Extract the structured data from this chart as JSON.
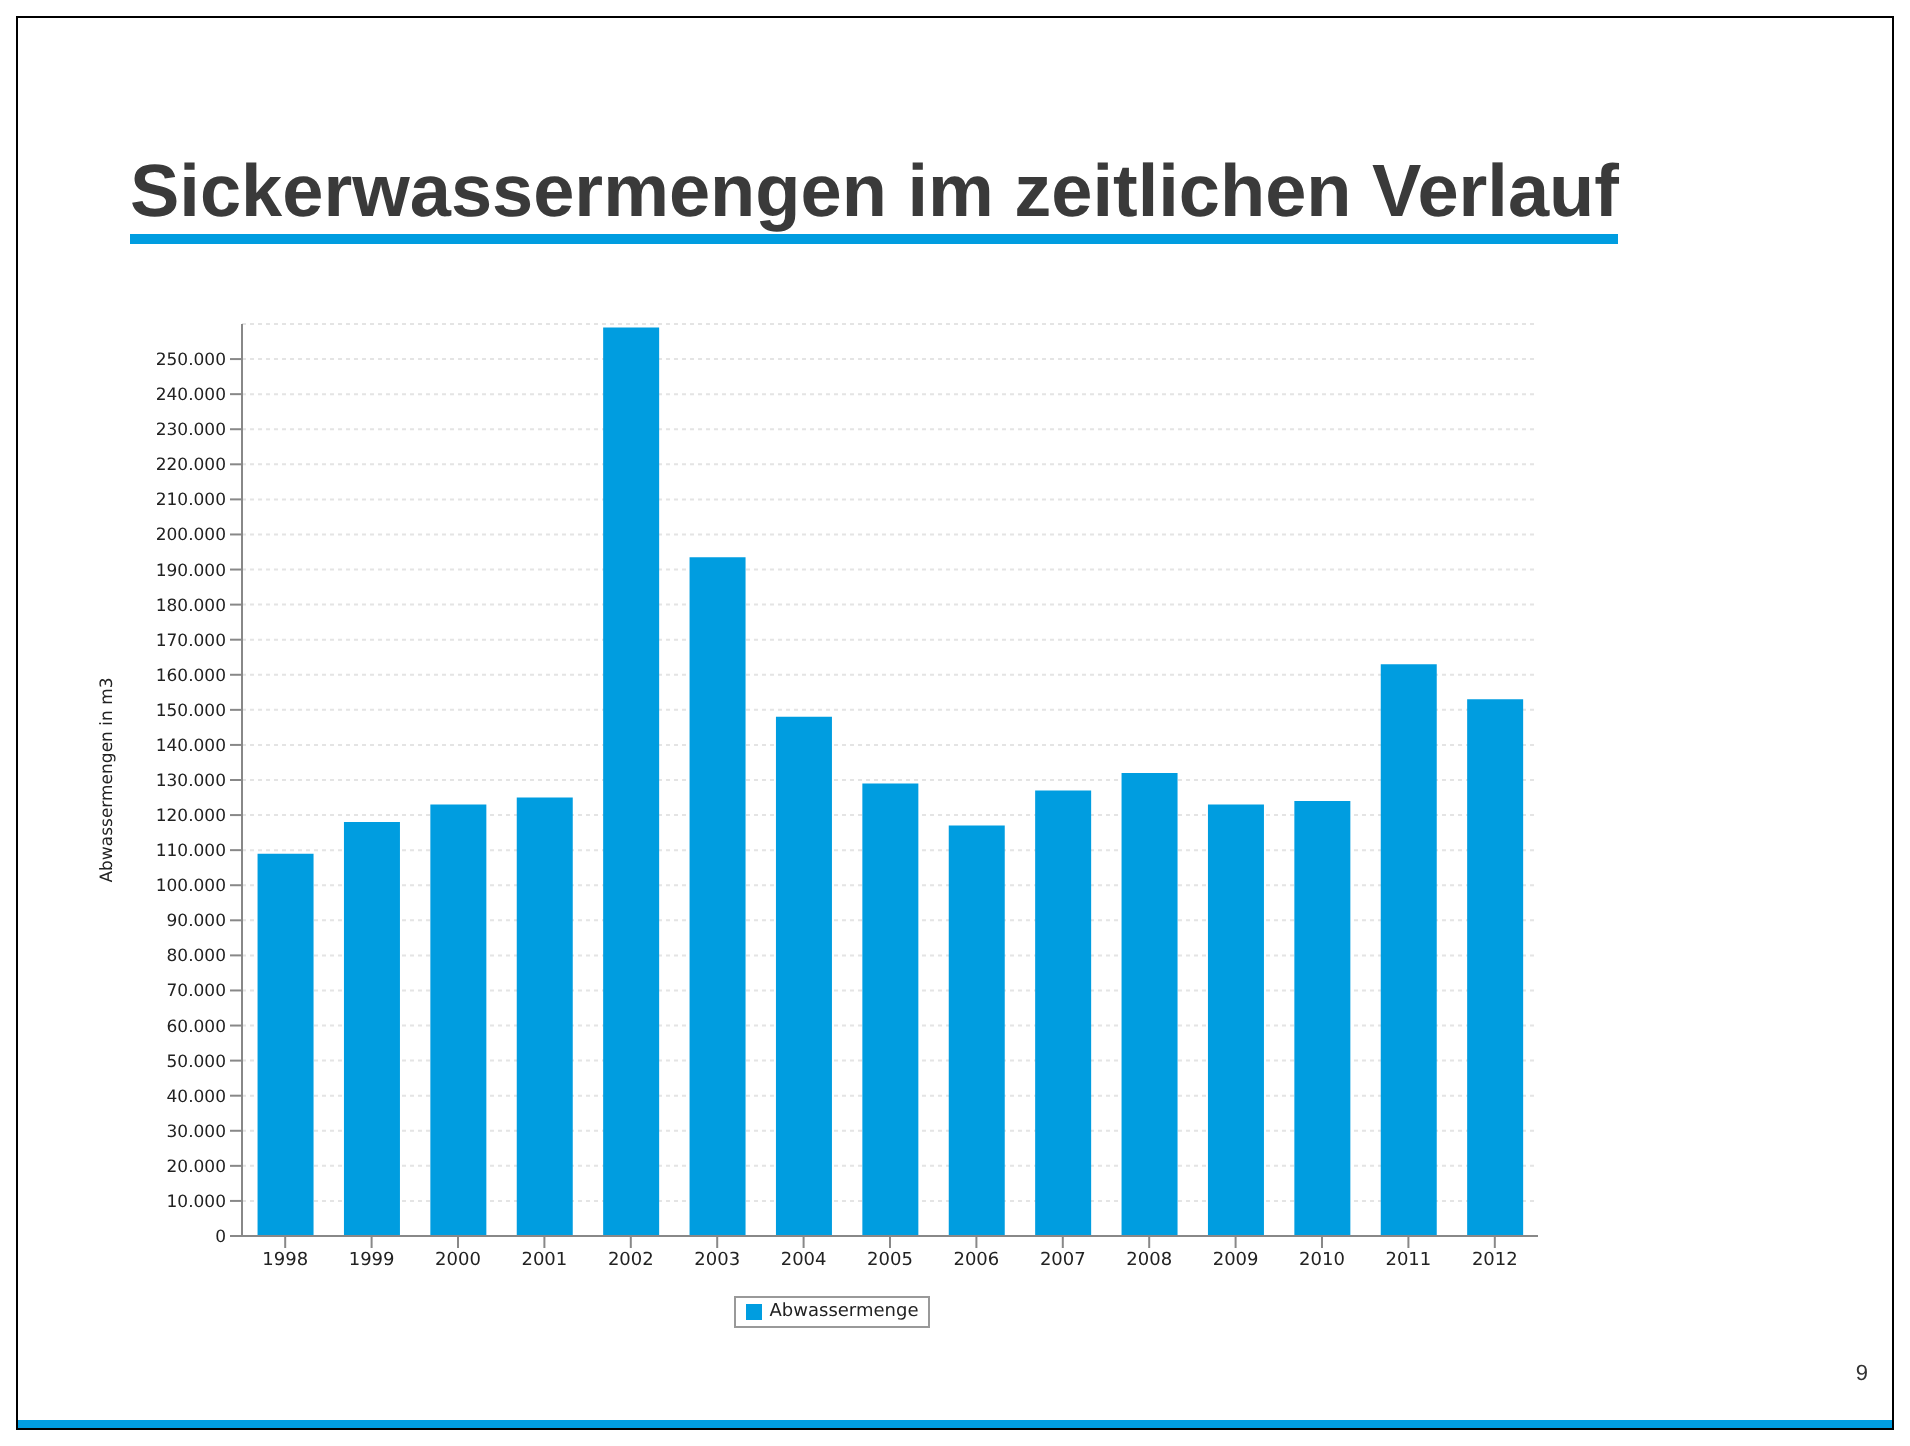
{
  "chart_data": {
    "type": "bar",
    "title": "Sickerwassermengen im zeitlichen Verlauf",
    "ylabel": "Abwassermengen in m3",
    "categories": [
      "1998",
      "1999",
      "2000",
      "2001",
      "2002",
      "2003",
      "2004",
      "2005",
      "2006",
      "2007",
      "2008",
      "2009",
      "2010",
      "2011",
      "2012"
    ],
    "series": [
      {
        "name": "Abwassermenge",
        "color": "#009de0",
        "values": [
          109000,
          118000,
          123000,
          125000,
          259000,
          193500,
          148000,
          129000,
          117000,
          127000,
          132000,
          123000,
          124000,
          163000,
          153000
        ]
      }
    ],
    "ylim": [
      0,
      260000
    ],
    "yticks": [
      0,
      {
        "value": 10000,
        "label": "10.000"
      },
      {
        "value": 20000,
        "label": "20.000"
      },
      {
        "value": 30000,
        "label": "30.000"
      },
      {
        "value": 40000,
        "label": "40.000"
      },
      {
        "value": 50000,
        "label": "50.000"
      },
      {
        "value": 60000,
        "label": "60.000"
      },
      {
        "value": 70000,
        "label": "70.000"
      },
      {
        "value": 80000,
        "label": "80.000"
      },
      {
        "value": 90000,
        "label": "90.000"
      },
      {
        "value": 100000,
        "label": "100.000"
      },
      {
        "value": 110000,
        "label": "110.000"
      },
      {
        "value": 120000,
        "label": "120.000"
      },
      {
        "value": 130000,
        "label": "130.000"
      },
      {
        "value": 140000,
        "label": "140.000"
      },
      {
        "value": 150000,
        "label": "150.000"
      },
      {
        "value": 160000,
        "label": "160.000"
      },
      {
        "value": 170000,
        "label": "170.000"
      },
      {
        "value": 180000,
        "label": "180.000"
      },
      {
        "value": 190000,
        "label": "190.000"
      },
      {
        "value": 200000,
        "label": "200.000"
      },
      {
        "value": 210000,
        "label": "210.000"
      },
      {
        "value": 220000,
        "label": "220.000"
      },
      {
        "value": 230000,
        "label": "230.000"
      },
      {
        "value": 240000,
        "label": "240.000"
      },
      {
        "value": 250000,
        "label": "250.000"
      }
    ],
    "grid": "y",
    "legend": "bottom",
    "annotations": [
      "9"
    ]
  }
}
